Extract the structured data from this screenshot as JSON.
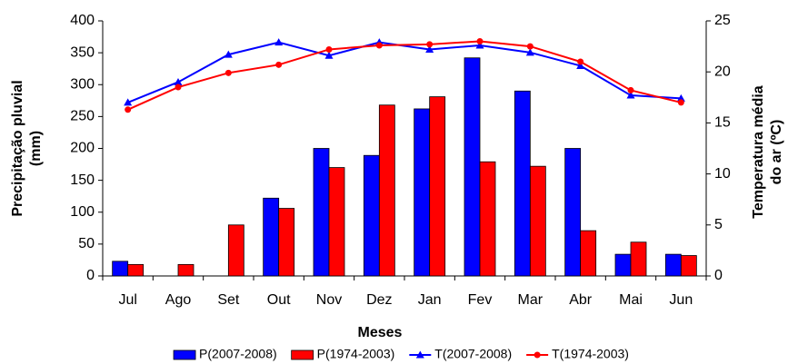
{
  "chart_data": {
    "type": "bar",
    "xlabel": "Meses",
    "ylabel": [
      "Precipitação pluvial",
      "(mm)"
    ],
    "y2label": [
      "Temperatura média",
      "do ar (ºC)"
    ],
    "categories": [
      "Jul",
      "Ago",
      "Set",
      "Out",
      "Nov",
      "Dez",
      "Jan",
      "Fev",
      "Mar",
      "Abr",
      "Mai",
      "Jun"
    ],
    "series": [
      {
        "name": "P(2007-2008)",
        "type": "bar",
        "color": "#0000ff",
        "values": [
          23,
          0,
          0,
          122,
          200,
          189,
          262,
          342,
          290,
          200,
          34,
          34
        ]
      },
      {
        "name": "P(1974-2003)",
        "type": "bar",
        "color": "#ff0000",
        "values": [
          18,
          18,
          80,
          106,
          170,
          268,
          281,
          179,
          172,
          71,
          53,
          32
        ]
      },
      {
        "name": "T(2007-2008)",
        "type": "line",
        "axis": "y2",
        "marker": "triangle",
        "color": "#0000ff",
        "values": [
          17.0,
          19.0,
          21.7,
          22.9,
          21.6,
          22.9,
          22.2,
          22.6,
          21.9,
          20.6,
          17.7,
          17.4
        ]
      },
      {
        "name": "T(1974-2003)",
        "type": "line",
        "axis": "y2",
        "marker": "circle",
        "color": "#ff0000",
        "values": [
          16.3,
          18.5,
          19.9,
          20.7,
          22.2,
          22.6,
          22.7,
          23.0,
          22.5,
          21.0,
          18.2,
          17.0
        ]
      }
    ],
    "ylim": [
      0,
      400
    ],
    "yticks": [
      0,
      50,
      100,
      150,
      200,
      250,
      300,
      350,
      400
    ],
    "y2lim": [
      0,
      25
    ],
    "y2ticks": [
      0,
      5,
      10,
      15,
      20,
      25
    ],
    "grid": false,
    "legend": "bottom"
  }
}
